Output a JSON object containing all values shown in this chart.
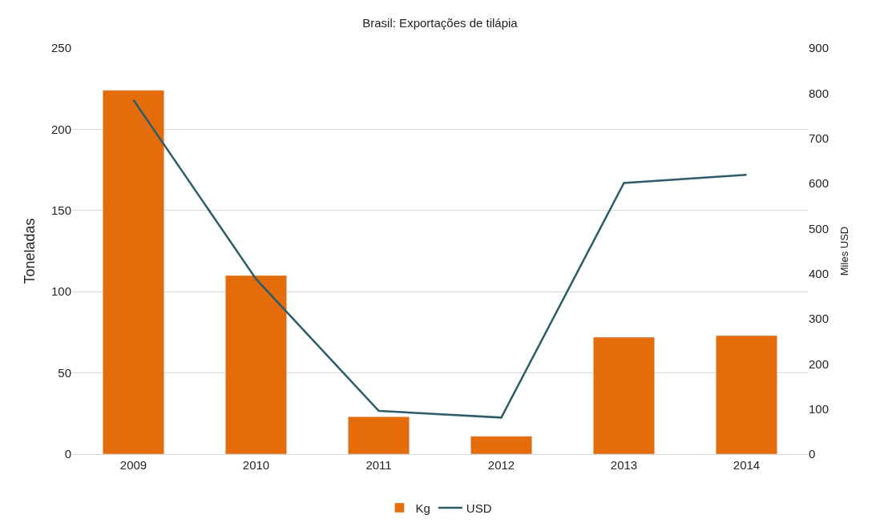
{
  "chart_data": {
    "type": "bar",
    "title": "Brasil: Exportações de tilápia",
    "ylabel": "Toneladas",
    "y2label": "Miles USD",
    "categories": [
      "2009",
      "2010",
      "2011",
      "2012",
      "2013",
      "2014"
    ],
    "series": [
      {
        "name": "Kg",
        "color": "#e46c0a",
        "values": [
          224,
          110,
          23,
          11,
          72,
          73
        ]
      },
      {
        "name": "USD",
        "type": "line",
        "axis": "y2",
        "color": "#2e5d69",
        "values": [
          785,
          388,
          96,
          81,
          601,
          619
        ]
      }
    ],
    "ylim": [
      0,
      250
    ],
    "yticks": [
      0,
      50,
      100,
      150,
      200,
      250
    ],
    "y2lim": [
      0,
      900
    ],
    "y2ticks": [
      0,
      100,
      200,
      300,
      400,
      500,
      600,
      700,
      800,
      900
    ],
    "grid": "y",
    "legend": "bottom",
    "marker": "none",
    "line_style": "solid"
  }
}
